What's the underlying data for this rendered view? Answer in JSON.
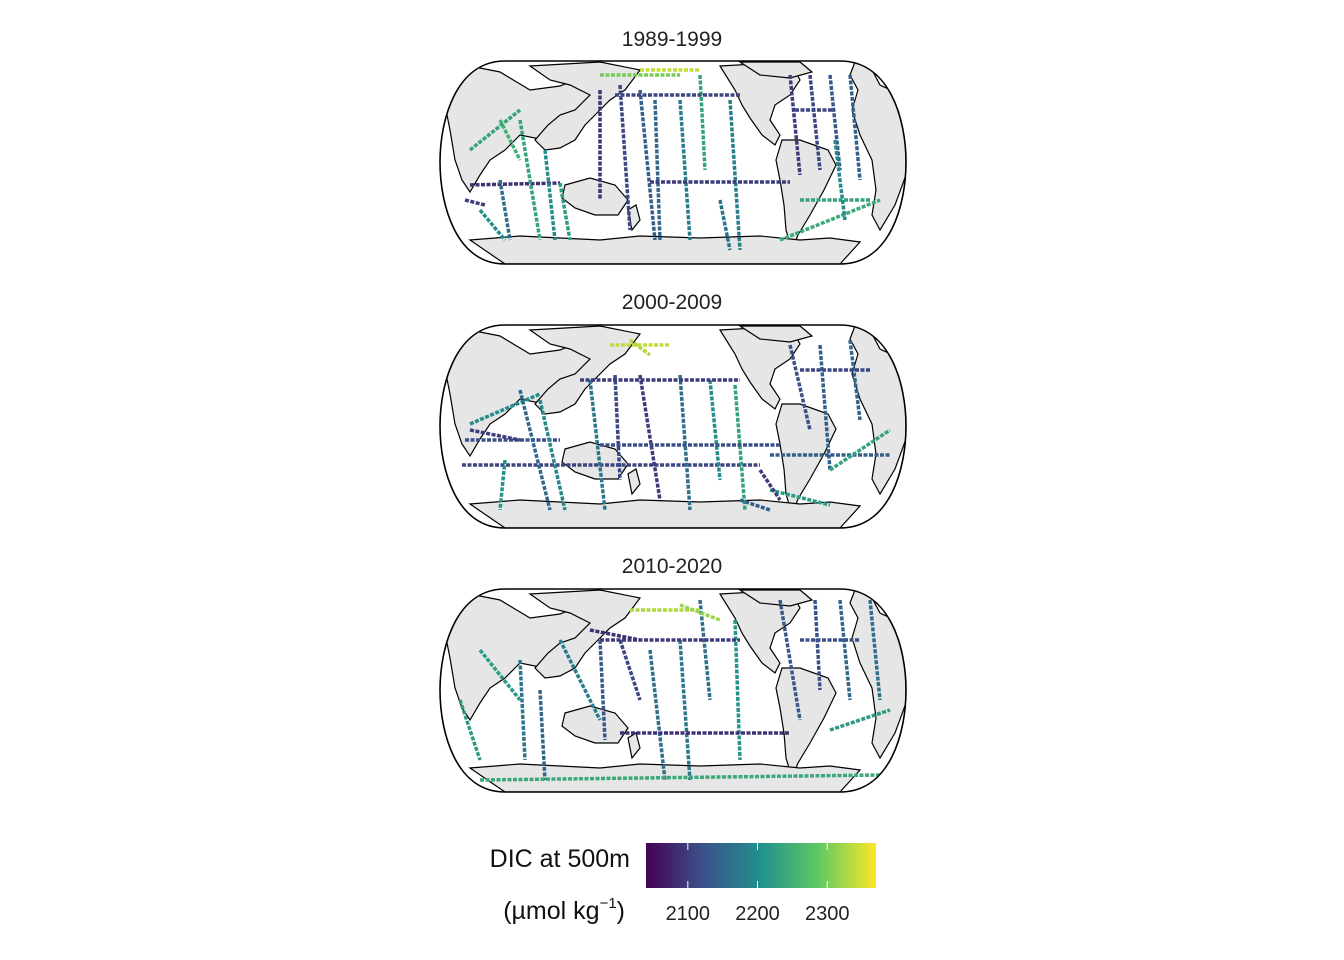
{
  "panels": [
    {
      "title": "1989-1999"
    },
    {
      "title": "2000-2009"
    },
    {
      "title": "2010-2020"
    }
  ],
  "legend": {
    "title_line1": "DIC at 500m",
    "title_unit": "(µmol kg",
    "title_exp": "−1",
    "title_close": ")",
    "ticks": [
      {
        "value": 2100,
        "label": "2100"
      },
      {
        "value": 2200,
        "label": "2200"
      },
      {
        "value": 2300,
        "label": "2300"
      }
    ],
    "range": [
      2040,
      2370
    ],
    "colormap": "viridis",
    "colors": [
      "#440154",
      "#3b528b",
      "#21918c",
      "#5ec962",
      "#fde725"
    ]
  },
  "colors": {
    "land": "#e6e6e6",
    "coast": "#000000",
    "background": "#ffffff"
  }
}
